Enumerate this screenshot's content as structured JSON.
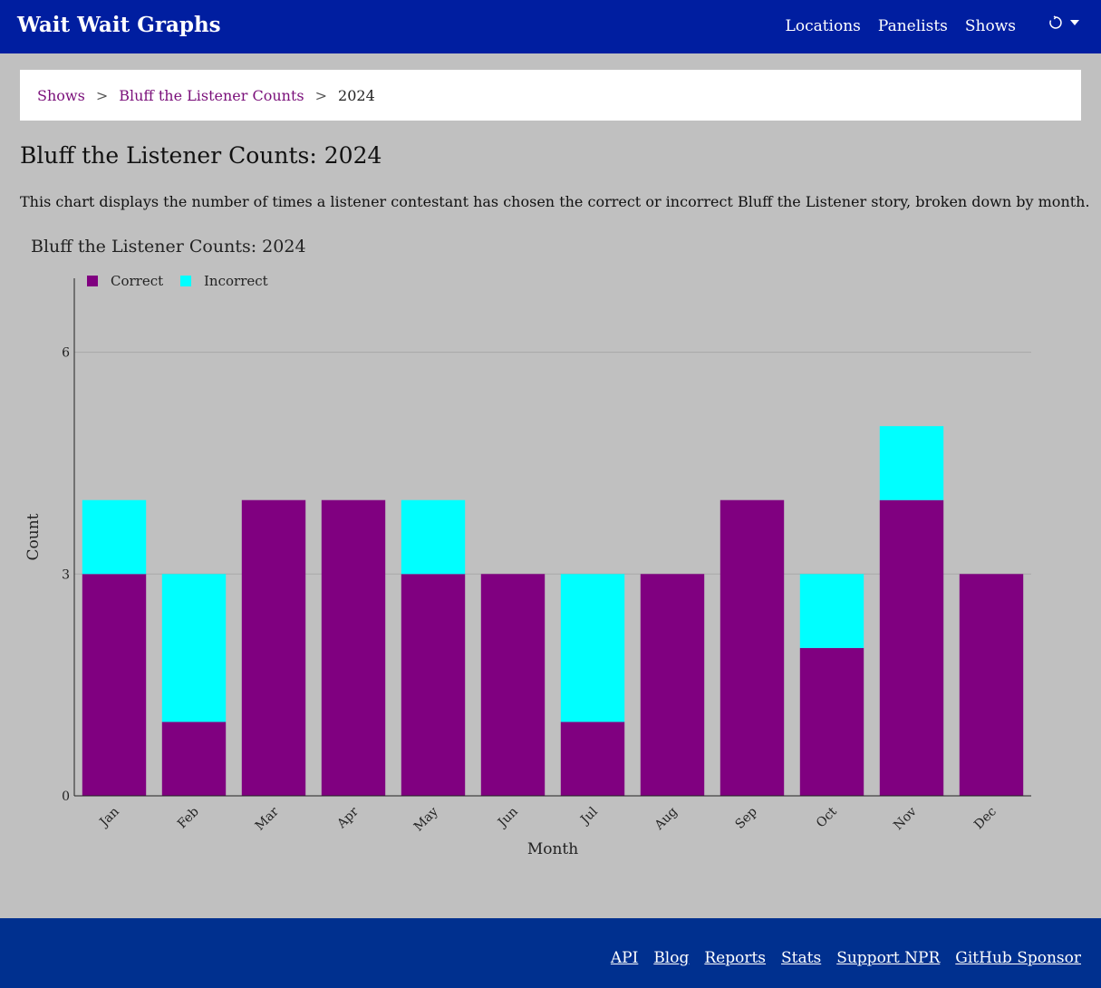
{
  "nav": {
    "brand": "Wait Wait Graphs",
    "links": [
      "Locations",
      "Panelists",
      "Shows"
    ],
    "theme_icon": "refresh-icon"
  },
  "breadcrumb": {
    "items": [
      "Shows",
      "Bluff the Listener Counts"
    ],
    "current": "2024",
    "separator": ">"
  },
  "page": {
    "title": "Bluff the Listener Counts: 2024",
    "description": "This chart displays the number of times a listener contestant has chosen the correct or incorrect Bluff the Listener story, broken down by month."
  },
  "chart_data": {
    "type": "bar",
    "stacked": true,
    "title": "Bluff the Listener Counts: 2024",
    "xlabel": "Month",
    "ylabel": "Count",
    "categories": [
      "Jan",
      "Feb",
      "Mar",
      "Apr",
      "May",
      "Jun",
      "Jul",
      "Aug",
      "Sep",
      "Oct",
      "Nov",
      "Dec"
    ],
    "series": [
      {
        "name": "Correct",
        "color": "#800080",
        "values": [
          3,
          1,
          4,
          4,
          3,
          3,
          1,
          3,
          4,
          2,
          4,
          3
        ]
      },
      {
        "name": "Incorrect",
        "color": "#00ffff",
        "values": [
          1,
          2,
          0,
          0,
          1,
          0,
          2,
          0,
          0,
          1,
          1,
          0
        ]
      }
    ],
    "ylim": [
      0,
      7
    ],
    "yticks": [
      0,
      3,
      6
    ],
    "grid": true,
    "legend": "top-left"
  },
  "footer": {
    "links": [
      "API",
      "Blog",
      "Reports",
      "Stats",
      "Support NPR",
      "GitHub Sponsor"
    ]
  }
}
